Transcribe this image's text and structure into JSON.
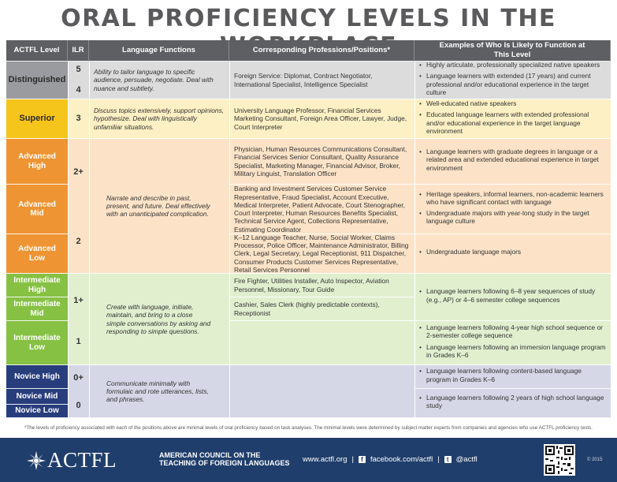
{
  "title": "ORAL PROFICIENCY LEVELS IN THE WORKPLACE",
  "colors": {
    "header": "#5e5f62",
    "distinguished_dark": "#9a9b9e",
    "distinguished_light": "#dcdcdd",
    "superior_dark": "#f6c51c",
    "superior_light": "#fdf0c4",
    "advanced_dark": "#ef9433",
    "advanced_light": "#fce3c8",
    "intermediate_dark": "#86c144",
    "intermediate_light": "#e1efcf",
    "novice_dark": "#273d7c",
    "novice_light": "#d5d6e6",
    "footer": "#203e6b"
  },
  "headers": {
    "level": "ACTFL Level",
    "ilr": "ILR",
    "functions": "Language Functions",
    "professions": "Corresponding Professions/Positions*",
    "examples": "Examples of Who Is Likely to Function at This Level"
  },
  "levels": {
    "distinguished": "Distinguished",
    "superior": "Superior",
    "advanced_high": "Advanced High",
    "advanced_mid": "Advanced Mid",
    "advanced_low": "Advanced Low",
    "intermediate_high": "Intermediate High",
    "intermediate_mid": "Intermediate Mid",
    "intermediate_low": "Intermediate Low",
    "novice_high": "Novice High",
    "novice_mid": "Novice Mid",
    "novice_low": "Novice Low"
  },
  "ilr": {
    "distinguished_a": "5",
    "distinguished_b": "4",
    "superior": "3",
    "advanced_high": "2+",
    "advanced_low": "2",
    "intermediate_high": "1+",
    "intermediate_low": "1",
    "novice_high": "0+",
    "novice_low": "0"
  },
  "functions": {
    "distinguished": "Ability to tailor language to specific audience, persuade, negotiate. Deal with nuance and subtlety.",
    "superior": "Discuss topics extensively, support opinions, hypothesize. Deal with linguistically unfamiliar situations.",
    "advanced": "Narrate and describe in past, present, and future. Deal effectively with an unanticipated complication.",
    "intermediate": "Create with language, initiate, maintain, and bring to a close simple conversations by asking and responding to simple questions.",
    "novice": "Communicate minimally with formulaic and rote utterances, lists, and phrases."
  },
  "professions": {
    "distinguished": "Foreign Service: Diplomat, Contract Negotiator, International Specialist, Intelligence Specialist",
    "superior": "University Language Professor, Financial Services Marketing Consultant, Foreign Area Officer, Lawyer, Judge, Court Interpreter",
    "advanced_high": "Physician, Human Resources Communications Consultant, Financial Services Senior Consultant, Quality Assurance Specialist, Marketing Manager, Financial Advisor, Broker, Military Linguist, Translation Officer",
    "advanced_mid": "Banking and Investment Services Customer Service Representative, Fraud Specialist, Account Executive, Medical Interpreter, Patient Advocate, Court Stenographer, Court Interpreter, Human Resources Benefits Specialist, Technical Service Agent, Collections Representative, Estimating Coordinator",
    "advanced_low": "K–12 Language Teacher, Nurse, Social Worker, Claims Processor, Police Officer, Maintenance Administrator, Billing Clerk, Legal Secretary, Legal Receptionist, 911 Dispatcher, Consumer Products Customer Services Representative, Retail Services Personnel",
    "intermediate_high": "Fire Fighter, Utilities Installer, Auto Inspector, Aviation Personnel, Missionary, Tour Guide",
    "intermediate_mid": "Cashier, Sales Clerk (highly predictable contexts), Receptionist"
  },
  "examples": {
    "distinguished": [
      "Highly articulate, professionally specialized native speakers",
      "Language learners with extended (17 years) and current professional and/or educational experience in the target culture"
    ],
    "superior": [
      "Well-educated native speakers",
      "Educated language learners with extended professional and/or educational experience in the target language environment"
    ],
    "advanced_high": [
      "Language learners with graduate degrees in language or a related area and extended educational experience in target environment"
    ],
    "advanced_mid": [
      "Heritage speakers, informal learners, non-academic learners who have significant contact with language",
      "Undergraduate majors with year-long study in the target language culture"
    ],
    "advanced_low": [
      "Undergraduate language majors"
    ],
    "intermediate_high": [
      "Language learners following 6–8 year sequences of study (e.g., AP) or 4–6 semester college sequences"
    ],
    "intermediate_low": [
      "Language learners following 4-year high school sequence or 2-semester college sequence",
      "Language learners following an immersion language program in Grades K–6"
    ],
    "novice_high": [
      "Language learners following content-based language program in Grades K–6"
    ],
    "novice_low": [
      "Language learners following 2 years of high school language study"
    ]
  },
  "footnote": "*The levels of proficiency associated with each of the positions above are minimal levels of oral proficiency based on task analyses. The minimal levels were determined by subject matter experts from companies and agencies who use ACTFL proficiency tests.",
  "footer": {
    "logo_word": "ACTFL",
    "org_line1": "AMERICAN COUNCIL ON THE",
    "org_line2": "TEACHING OF FOREIGN LANGUAGES",
    "website": "www.actfl.org",
    "facebook": "facebook.com/actfl",
    "twitter": "@actfl",
    "copyright": "© 2015",
    "facebook_icon": "facebook-icon",
    "twitter_icon": "twitter-icon",
    "qr_icon": "qr-code-icon"
  }
}
